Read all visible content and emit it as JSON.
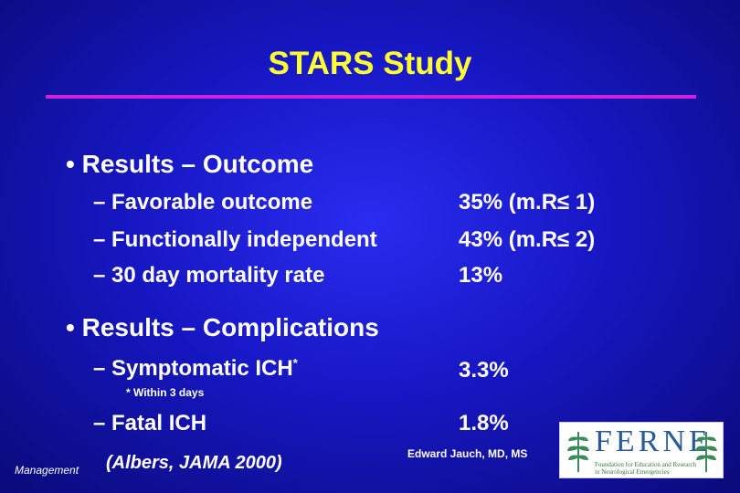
{
  "title": "STARS Study",
  "outcome": {
    "bullet": "Results – Outcome",
    "items": [
      {
        "label": "– Favorable outcome",
        "value": "35%  (m.R≤ 1)"
      },
      {
        "label": "– Functionally independent",
        "value": "43%  (m.R≤ 2)"
      },
      {
        "label": "– 30 day mortality rate",
        "value": "13%"
      }
    ]
  },
  "complications": {
    "bullet": "Results – Complications",
    "items": [
      {
        "label": "– Symptomatic ICH",
        "marker": "*",
        "value": "3.3%"
      },
      {
        "label": "– Fatal ICH",
        "value": "1.8%"
      }
    ],
    "footnote": "* Within 3 days"
  },
  "footer": {
    "management": "Management",
    "citation": "(Albers, JAMA 2000)",
    "author": "Edward Jauch, MD, MS"
  },
  "logo": {
    "name": "FERNE",
    "tagline_1": "Foundation for Education and Research",
    "tagline_2": "in Neurological Emergencies",
    "accent_color": "#2a5a9a",
    "leaf_color": "#3a8a5a"
  }
}
